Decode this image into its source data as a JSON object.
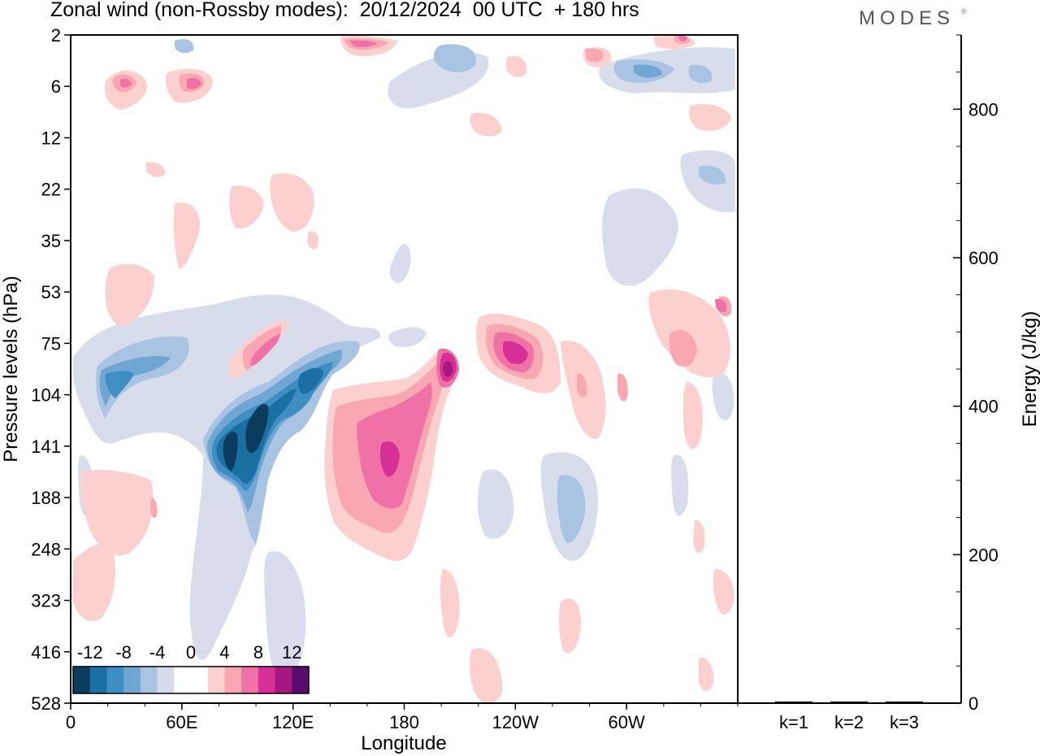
{
  "header": {
    "title": "Zonal wind (non-Rossby modes):  20/12/2024  00 UTC  + 180 hrs",
    "brand": "MODES",
    "brand_mark": "®"
  },
  "chart_data": [
    {
      "type": "heatmap",
      "title": "Zonal wind (non-Rossby modes):  20/12/2024  00 UTC  + 180 hrs",
      "xlabel": "Longitude",
      "ylabel": "Pressure levels (hPa)",
      "x_ticks": [
        "0",
        "60E",
        "120E",
        "180",
        "120W",
        "60W"
      ],
      "x_tick_values": [
        0,
        60,
        120,
        180,
        240,
        300
      ],
      "xlim": [
        0,
        360
      ],
      "y_ticks": [
        "2",
        "6",
        "12",
        "22",
        "35",
        "53",
        "75",
        "104",
        "141",
        "188",
        "248",
        "323",
        "416",
        "528"
      ],
      "y_scale": "pressure-levels",
      "colorbar": {
        "labels": [
          "-12",
          "-8",
          "-4",
          "0",
          "4",
          "8",
          "12"
        ],
        "colors": [
          "#0b3c5d",
          "#1a6fa3",
          "#3d8ec3",
          "#6fa7d2",
          "#a9c4e2",
          "#d6dbeb",
          "#ffffff",
          "#ffffff",
          "#fbd0cf",
          "#f9a7b3",
          "#f071a6",
          "#d62f96",
          "#a8167f",
          "#5a0c6e"
        ],
        "placement": "bottom-left"
      },
      "features": [
        {
          "name": "negative jet core",
          "lon": [
            77,
            104
          ],
          "pressure": [
            104,
            188
          ],
          "min_value": -14
        },
        {
          "name": "negative band",
          "lon": [
            10,
            55
          ],
          "pressure": [
            75,
            141
          ],
          "min_value": -6
        },
        {
          "name": "positive region",
          "lon": [
            150,
            200
          ],
          "pressure": [
            104,
            248
          ],
          "max_value": 8
        },
        {
          "name": "positive core",
          "lon": [
            190,
            200
          ],
          "pressure": [
            75,
            104
          ],
          "max_value": 10
        },
        {
          "name": "positive core",
          "lon": [
            230,
            260
          ],
          "pressure": [
            75,
            104
          ],
          "max_value": 8
        }
      ]
    },
    {
      "type": "bar",
      "ylabel": "Energy (J/kg)",
      "categories": [
        "k=1",
        "k=2",
        "k=3"
      ],
      "values": [
        1,
        1,
        1
      ],
      "ylim": [
        0,
        900
      ],
      "y_ticks": [
        "0",
        "200",
        "400",
        "600",
        "800"
      ]
    }
  ],
  "colors": {
    "neg_dark": "#0b3c5d",
    "neg_light": "#d6dbeb",
    "pos_light": "#fbd0cf",
    "pos_dark": "#5a0c6e",
    "frame": "#000000"
  }
}
